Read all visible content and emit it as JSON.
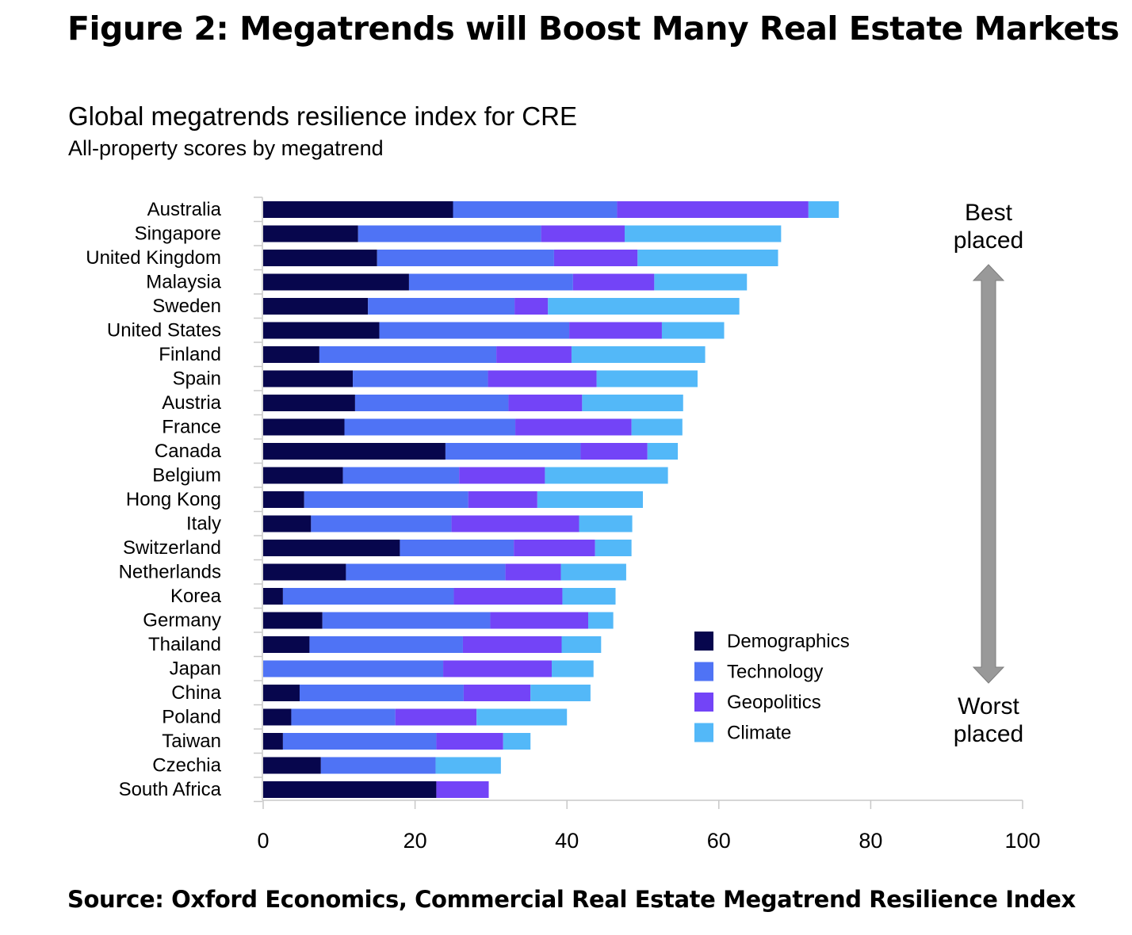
{
  "figure_title": "Figure 2: Megatrends will Boost Many Real Estate Markets",
  "source": "Source: Oxford Economics, Commercial Real Estate Megatrend Resilience Index",
  "side_labels": {
    "best": [
      "Best",
      "placed"
    ],
    "worst": [
      "Worst",
      "placed"
    ]
  },
  "colors": {
    "Demographics": "#07064d",
    "Technology": "#4f73f5",
    "Geopolitics": "#7344f7",
    "Climate": "#53b8f8",
    "arrow": "#999999",
    "axis": "#c8c8c8"
  },
  "chart_data": {
    "type": "bar",
    "orientation": "horizontal",
    "stacked": true,
    "title": "Global megatrends resilience index for CRE",
    "subtitle": "All-property scores by megatrend",
    "xlim": [
      0,
      100
    ],
    "xticks": [
      0,
      20,
      40,
      60,
      80,
      100
    ],
    "legend_position": "bottom-right",
    "categories": [
      "Australia",
      "Singapore",
      "United Kingdom",
      "Malaysia",
      "Sweden",
      "United States",
      "Finland",
      "Spain",
      "Austria",
      "France",
      "Canada",
      "Belgium",
      "Hong Kong",
      "Italy",
      "Switzerland",
      "Netherlands",
      "Korea",
      "Germany",
      "Thailand",
      "Japan",
      "China",
      "Poland",
      "Taiwan",
      "Czechia",
      "South Africa"
    ],
    "series": [
      {
        "name": "Demographics",
        "values": [
          25.0,
          12.5,
          15.0,
          19.2,
          13.8,
          15.3,
          7.4,
          11.8,
          12.1,
          10.7,
          24.0,
          10.5,
          5.4,
          6.3,
          18.0,
          10.9,
          2.6,
          7.8,
          6.1,
          0.0,
          4.8,
          3.7,
          2.6,
          7.6,
          22.8
        ]
      },
      {
        "name": "Technology",
        "values": [
          21.6,
          24.1,
          23.3,
          21.6,
          19.3,
          25.0,
          23.3,
          17.8,
          20.2,
          22.5,
          17.8,
          15.3,
          21.6,
          18.5,
          15.0,
          21.0,
          22.5,
          22.1,
          20.2,
          23.7,
          21.6,
          13.7,
          20.2,
          15.1,
          0.0
        ]
      },
      {
        "name": "Geopolitics",
        "values": [
          25.2,
          11.0,
          11.0,
          10.7,
          4.4,
          12.2,
          9.9,
          14.3,
          9.7,
          15.3,
          8.8,
          11.3,
          9.1,
          16.8,
          10.7,
          7.3,
          14.3,
          12.9,
          13.0,
          14.3,
          8.8,
          10.7,
          8.8,
          0.0,
          6.9
        ]
      },
      {
        "name": "Climate",
        "values": [
          4.0,
          20.6,
          18.5,
          12.2,
          25.2,
          8.2,
          17.6,
          13.3,
          13.3,
          6.7,
          4.0,
          16.2,
          13.9,
          7.0,
          4.8,
          8.6,
          7.0,
          3.3,
          5.2,
          5.5,
          7.9,
          11.9,
          3.6,
          8.6,
          0.0
        ]
      }
    ]
  }
}
